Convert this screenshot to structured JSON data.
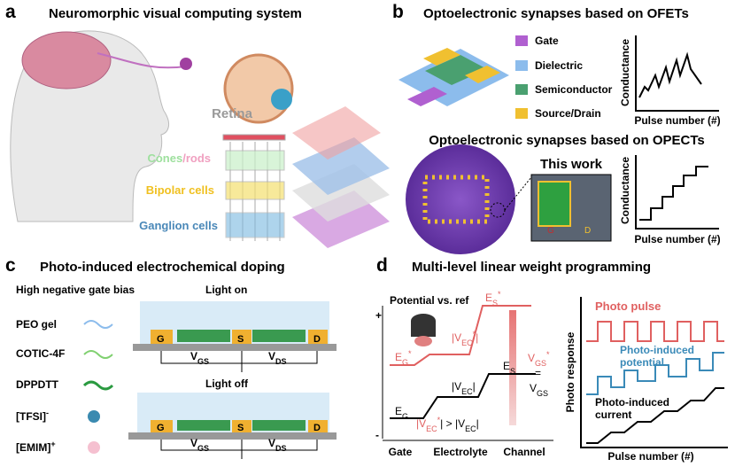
{
  "panel_a": {
    "letter": "a",
    "title": "Neuromorphic visual computing system",
    "retina": "Retina",
    "cones": "Cones",
    "rods": "/rods",
    "bipolar": "Bipolar cells",
    "ganglion": "Ganglion cells"
  },
  "panel_b": {
    "letter": "b",
    "title_ofet": "Optoelectronic synapses based on OFETs",
    "legend": [
      "Gate",
      "Dielectric",
      "Semiconductor",
      "Source/Drain"
    ],
    "y_label_1": "Conductance",
    "x_label_1": "Pulse number (#)",
    "title_opect": "Optoelectronic synapses based on OPECTs",
    "this_work": "This work",
    "chip_labels": [
      "G",
      "D"
    ],
    "y_label_2": "Conductance",
    "x_label_2": "Pulse number (#)"
  },
  "panel_c": {
    "letter": "c",
    "title": "Photo-induced electrochemical doping",
    "bias": "High negative gate bias",
    "light_on": "Light on",
    "light_off": "Light off",
    "legend": [
      [
        "PEO gel"
      ],
      [
        "COTIC-4F"
      ],
      [
        "DPPDTT"
      ],
      [
        "[TFSI]",
        "-"
      ],
      [
        "[EMIM]",
        "+"
      ]
    ],
    "electrodes": [
      "G",
      "S",
      "D"
    ],
    "vgs": [
      "V",
      "GS"
    ],
    "vds": [
      "V",
      "DS"
    ]
  },
  "panel_d": {
    "letter": "d",
    "title": "Multi-level linear weight programming",
    "potential": "Potential vs. ref",
    "plus": "+",
    "minus": "-",
    "es_star": [
      "E",
      "S",
      "*"
    ],
    "eg_star": [
      "E",
      "G",
      "*"
    ],
    "vec_star": [
      "|V",
      "EC",
      "*",
      "|"
    ],
    "vec": [
      "|V",
      "EC",
      "|"
    ],
    "es": [
      "E",
      "S"
    ],
    "eg": [
      "E",
      "G"
    ],
    "compare": [
      "|V",
      "EC",
      "*",
      "| > |V",
      "EC",
      "|"
    ],
    "vgs_star": [
      "V",
      "GS",
      "*"
    ],
    "equals": "=",
    "vgs": [
      "V",
      "GS"
    ],
    "x_labels": [
      "Gate",
      "Electrolyte",
      "Channel"
    ],
    "photo_pulse": "Photo pulse",
    "photo_potential": [
      "Photo-induced",
      "potential"
    ],
    "photo_current": [
      "Photo-induced",
      "current"
    ],
    "y_label": "Photo response",
    "x_label": "Pulse number (#)"
  }
}
